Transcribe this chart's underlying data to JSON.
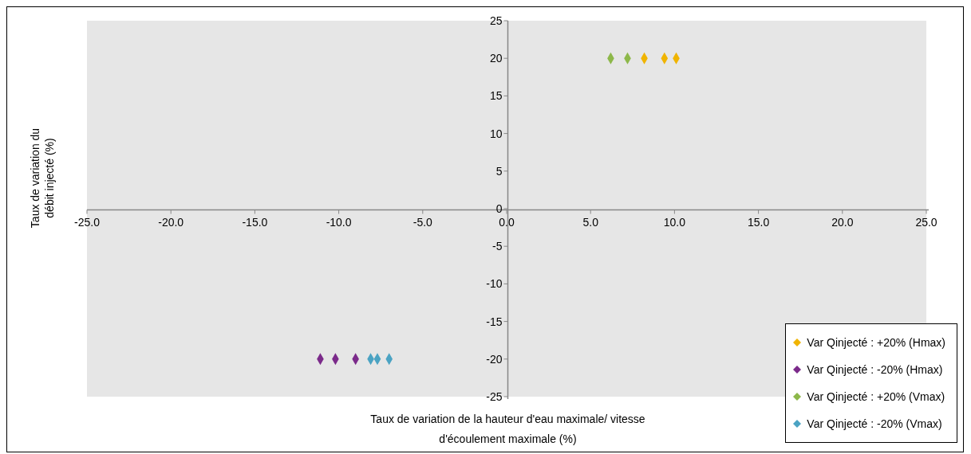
{
  "chart_data": {
    "type": "scatter",
    "xlabel": "Taux de variation de la hauteur d'eau maximale/ vitesse d'écoulement maximale (%)",
    "ylabel": "Taux de variation du débit injecté (%)",
    "series": [
      {
        "name": "Var Qinjecté : +20% (Hmax)",
        "color": "#f0b400",
        "x": [
          8.2,
          9.4,
          10.1
        ],
        "values": [
          20,
          20,
          20
        ]
      },
      {
        "name": "Var Qinjecté : -20% (Hmax)",
        "color": "#7b2a8a",
        "x": [
          -11.1,
          -10.2,
          -9.0
        ],
        "values": [
          -20,
          -20,
          -20
        ]
      },
      {
        "name": "Var Qinjecté : +20% (Vmax)",
        "color": "#8db84a",
        "x": [
          6.2,
          7.2
        ],
        "values": [
          20,
          20
        ]
      },
      {
        "name": "Var Qinjecté : -20% (Vmax)",
        "color": "#4ba3c3",
        "x": [
          -8.1,
          -7.7,
          -7.0
        ],
        "values": [
          -20,
          -20,
          -20
        ]
      }
    ],
    "xlim": [
      -25,
      25
    ],
    "xticks": [
      {
        "value": -25,
        "label": "-25.0"
      },
      {
        "value": -20,
        "label": "-20.0"
      },
      {
        "value": -15,
        "label": "-15.0"
      },
      {
        "value": -10,
        "label": "-10.0"
      },
      {
        "value": -5,
        "label": "-5.0"
      },
      {
        "value": 0,
        "label": "0.0"
      },
      {
        "value": 5,
        "label": "5.0"
      },
      {
        "value": 10,
        "label": "10.0"
      },
      {
        "value": 15,
        "label": "15.0"
      },
      {
        "value": 20,
        "label": "20.0"
      },
      {
        "value": 25,
        "label": "25.0"
      }
    ],
    "ylim": [
      -25,
      25
    ],
    "yticks": [
      -25,
      -20,
      -15,
      -10,
      -5,
      0,
      5,
      10,
      15,
      20,
      25
    ],
    "grid": false,
    "legend": "bottom right",
    "marker": "diamond"
  }
}
